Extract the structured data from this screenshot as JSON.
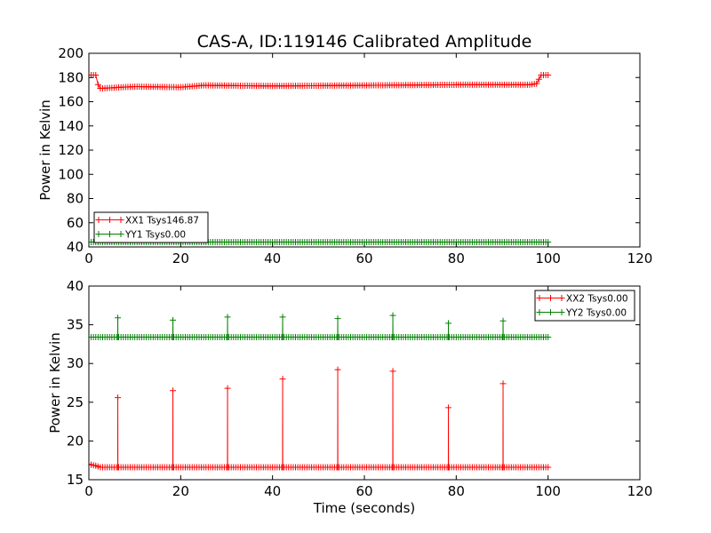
{
  "figure": {
    "title": "CAS-A, ID:119146 Calibrated Amplitude"
  },
  "chart_data": [
    {
      "type": "line",
      "title": "CAS-A, ID:119146 Calibrated Amplitude",
      "xlabel": "",
      "ylabel": "Power in Kelvin",
      "xlim": [
        0,
        120
      ],
      "ylim": [
        40,
        200
      ],
      "xticks": [
        "0",
        "20",
        "40",
        "60",
        "80",
        "100",
        "120"
      ],
      "yticks": [
        "40",
        "60",
        "80",
        "100",
        "120",
        "140",
        "160",
        "180",
        "200"
      ],
      "grid": false,
      "legend_position": "lower-left",
      "x_start": 0,
      "x_end": 100,
      "x_step": 0.5,
      "series": [
        {
          "name": "XX1 Tsys146.87",
          "color": "#ff0000",
          "marker": "plus",
          "profile": [
            [
              0,
              182
            ],
            [
              1.5,
              182
            ],
            [
              2.2,
              171
            ],
            [
              5,
              171.5
            ],
            [
              10,
              172.5
            ],
            [
              20,
              172
            ],
            [
              25,
              173.5
            ],
            [
              40,
              173
            ],
            [
              60,
              173.5
            ],
            [
              80,
              174
            ],
            [
              96,
              174
            ],
            [
              97.5,
              175
            ],
            [
              98.5,
              182
            ],
            [
              100,
              182
            ]
          ]
        },
        {
          "name": "YY1 Tsys0.00",
          "color": "#008000",
          "marker": "plus",
          "profile": [
            [
              0,
              44
            ],
            [
              100,
              44
            ]
          ]
        }
      ]
    },
    {
      "type": "line",
      "title": "",
      "xlabel": "Time (seconds)",
      "ylabel": "Power in Kelvin",
      "xlim": [
        0,
        120
      ],
      "ylim": [
        15,
        40
      ],
      "xticks": [
        "0",
        "20",
        "40",
        "60",
        "80",
        "100",
        "120"
      ],
      "yticks": [
        "15",
        "20",
        "25",
        "30",
        "35",
        "40"
      ],
      "grid": false,
      "legend_position": "top-right",
      "x_start": 0,
      "x_end": 100,
      "x_step": 0.5,
      "series": [
        {
          "name": "XX2 Tsys0.00",
          "color": "#ff0000",
          "marker": "plus",
          "profile": [
            [
              0,
              17
            ],
            [
              1.5,
              16.8
            ],
            [
              2.5,
              16.6
            ],
            [
              100,
              16.6
            ]
          ],
          "spikes": [
            [
              6.3,
              25.6
            ],
            [
              18.3,
              26.5
            ],
            [
              30.2,
              26.8
            ],
            [
              42.2,
              28
            ],
            [
              54.2,
              29.2
            ],
            [
              66.2,
              29
            ],
            [
              78.3,
              24.3
            ],
            [
              90.2,
              27.4
            ]
          ]
        },
        {
          "name": "YY2 Tsys0.00",
          "color": "#008000",
          "marker": "plus",
          "profile": [
            [
              0,
              33.4
            ],
            [
              100,
              33.4
            ]
          ],
          "spikes": [
            [
              6.3,
              35.9
            ],
            [
              18.3,
              35.6
            ],
            [
              30.2,
              36
            ],
            [
              42.2,
              36
            ],
            [
              54.2,
              35.8
            ],
            [
              66.2,
              36.2
            ],
            [
              78.3,
              35.2
            ],
            [
              90.2,
              35.5
            ]
          ]
        }
      ]
    }
  ]
}
